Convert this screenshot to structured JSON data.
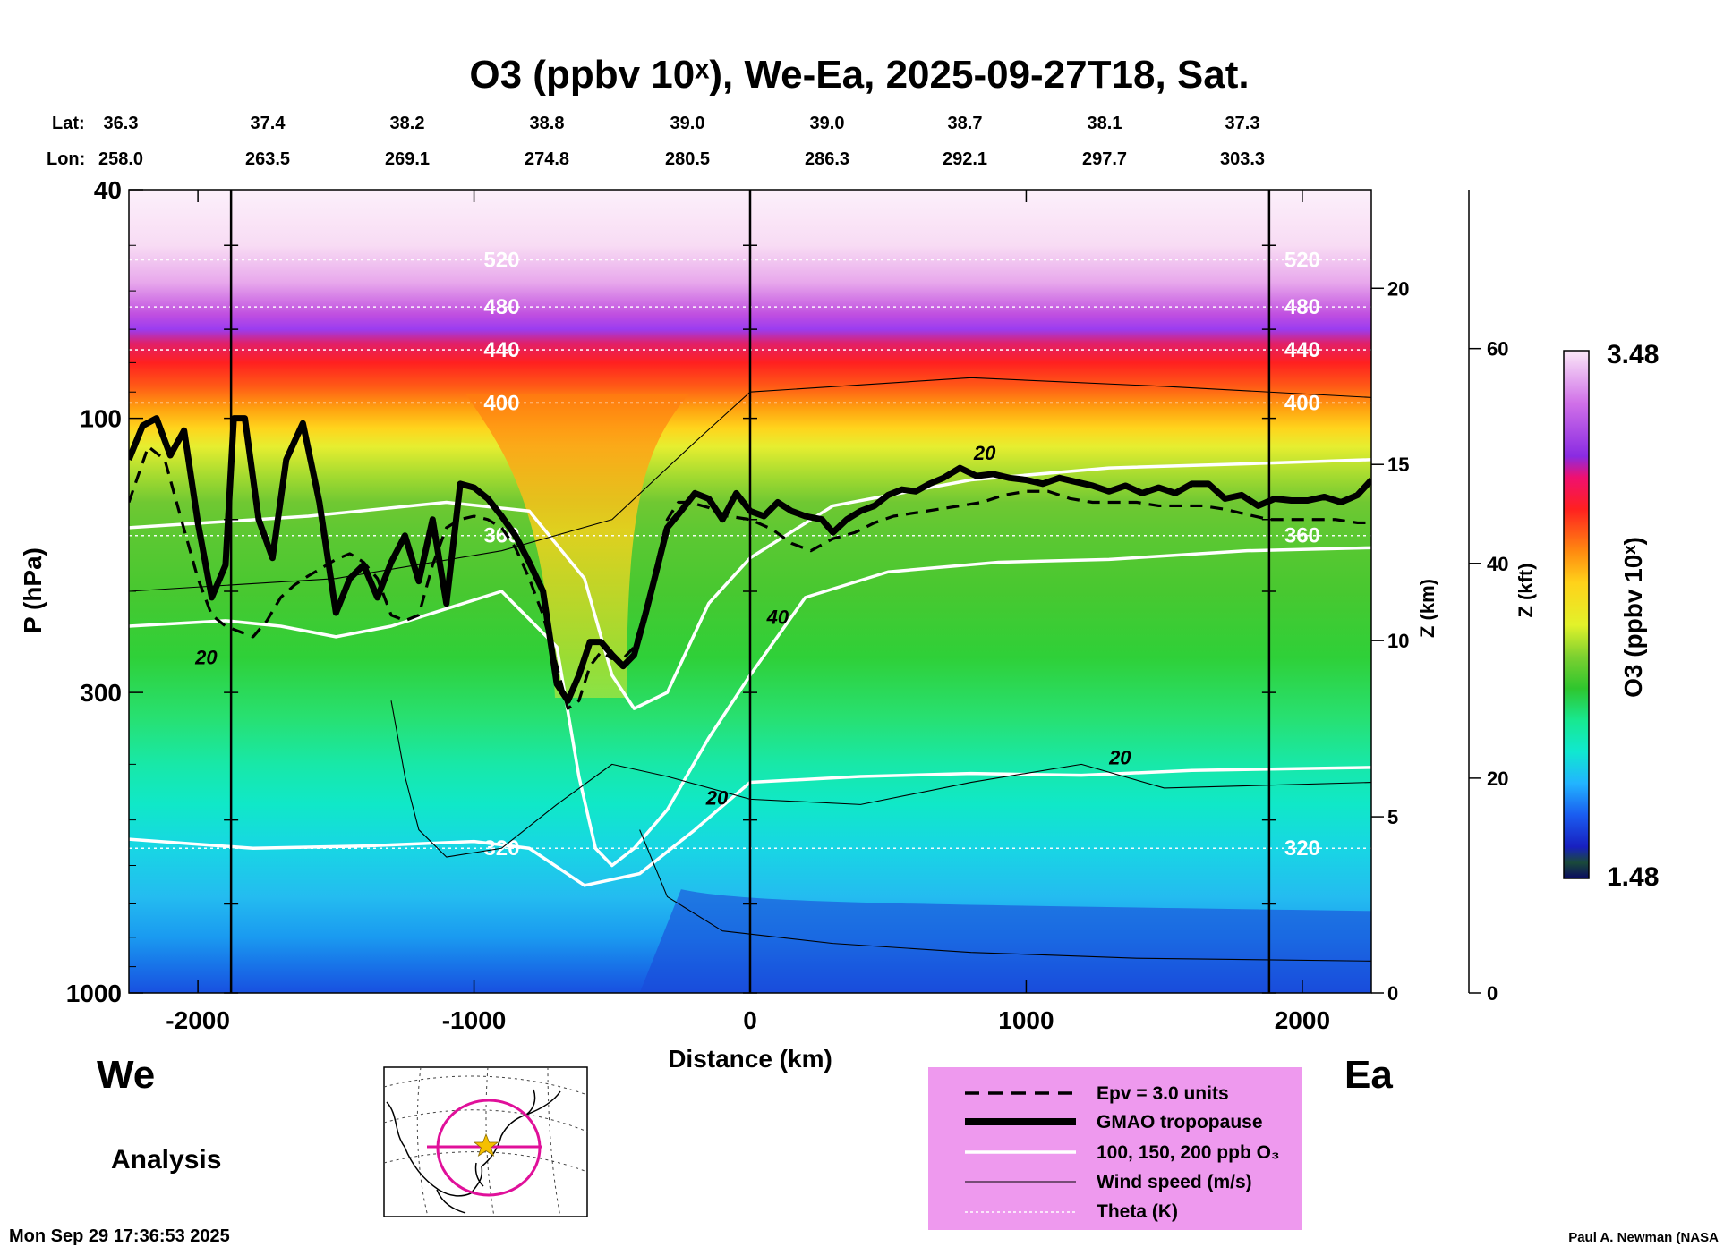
{
  "colors": {
    "background": "#ffffff",
    "ink": "#000000",
    "legend_panel": "#ee99ee",
    "map_circle": "#e0109a",
    "map_star": "#f5c000"
  },
  "labels": {
    "west": "We",
    "east": "Ea",
    "analysis": "Analysis",
    "timestamp": "Mon Sep 29 17:36:53 2025",
    "credit": "Paul A. Newman (NASA"
  },
  "legend": {
    "epv": "Epv = 3.0 units",
    "tropopause": "GMAO tropopause",
    "ozone_contours": "100, 150, 200 ppb O₃",
    "wind": "Wind speed (m/s)",
    "theta": "Theta (K)"
  },
  "chart_data": {
    "type": "heatmap",
    "title": "O3 (ppbv 10ˣ), We-Ea, 2025-09-27T18, Sat.",
    "xlabel": "Distance (km)",
    "ylabel": "P (hPa)",
    "y2label": "Z (km)",
    "y3label": "Z (kft)",
    "colorbar_label": "O3 (ppbv 10ˣ)",
    "xlim": [
      -2250,
      2250
    ],
    "ylim": [
      1000,
      40
    ],
    "yscale": "log",
    "x_ticks": [
      "-2000",
      "-1000",
      "0",
      "1000",
      "2000"
    ],
    "y_ticks": [
      "40",
      "100",
      "300",
      "1000"
    ],
    "z_km_ticks": [
      "0",
      "5",
      "10",
      "15",
      "20"
    ],
    "z_kft_ticks": [
      "0",
      "20",
      "40",
      "60"
    ],
    "colorbar_range": [
      "1.48",
      "3.48"
    ],
    "lat_header": "Lat:",
    "lon_header": "Lon:",
    "latlon": [
      {
        "lat": "36.3",
        "lon": "258.0"
      },
      {
        "lat": "37.4",
        "lon": "263.5"
      },
      {
        "lat": "38.2",
        "lon": "269.1"
      },
      {
        "lat": "38.8",
        "lon": "274.8"
      },
      {
        "lat": "39.0",
        "lon": "280.5"
      },
      {
        "lat": "39.0",
        "lon": "286.3"
      },
      {
        "lat": "38.7",
        "lon": "292.1"
      },
      {
        "lat": "38.1",
        "lon": "297.7"
      },
      {
        "lat": "37.3",
        "lon": "303.3"
      }
    ],
    "section_lines_km": [
      -1880,
      0,
      1880
    ],
    "theta_contours": [
      {
        "label": "520",
        "p": 53
      },
      {
        "label": "480",
        "p": 64
      },
      {
        "label": "440",
        "p": 76
      },
      {
        "label": "400",
        "p": 94
      },
      {
        "label": "360",
        "p": 160
      },
      {
        "label": "320",
        "p": 560
      }
    ],
    "wind_labels": [
      {
        "label": "20",
        "x": 850,
        "p": 118
      },
      {
        "label": "40",
        "x": 100,
        "p": 228
      },
      {
        "label": "20",
        "x": -1970,
        "p": 268
      },
      {
        "label": "20",
        "x": 1340,
        "p": 400
      },
      {
        "label": "20",
        "x": -120,
        "p": 470
      }
    ],
    "tropopause": [
      [
        -2250,
        118
      ],
      [
        -2200,
        103
      ],
      [
        -2150,
        100
      ],
      [
        -2100,
        116
      ],
      [
        -2050,
        105
      ],
      [
        -2000,
        152
      ],
      [
        -1950,
        205
      ],
      [
        -1900,
        180
      ],
      [
        -1870,
        100
      ],
      [
        -1830,
        100
      ],
      [
        -1780,
        150
      ],
      [
        -1730,
        175
      ],
      [
        -1680,
        118
      ],
      [
        -1620,
        102
      ],
      [
        -1560,
        140
      ],
      [
        -1500,
        218
      ],
      [
        -1450,
        190
      ],
      [
        -1400,
        180
      ],
      [
        -1350,
        205
      ],
      [
        -1300,
        178
      ],
      [
        -1250,
        160
      ],
      [
        -1200,
        192
      ],
      [
        -1150,
        150
      ],
      [
        -1100,
        210
      ],
      [
        -1050,
        130
      ],
      [
        -1000,
        132
      ],
      [
        -950,
        138
      ],
      [
        -900,
        148
      ],
      [
        -850,
        160
      ],
      [
        -800,
        178
      ],
      [
        -750,
        200
      ],
      [
        -700,
        290
      ],
      [
        -660,
        310
      ],
      [
        -620,
        280
      ],
      [
        -580,
        245
      ],
      [
        -540,
        245
      ],
      [
        -500,
        258
      ],
      [
        -460,
        270
      ],
      [
        -420,
        258
      ],
      [
        -380,
        220
      ],
      [
        -340,
        185
      ],
      [
        -300,
        155
      ],
      [
        -250,
        145
      ],
      [
        -200,
        135
      ],
      [
        -150,
        138
      ],
      [
        -100,
        150
      ],
      [
        -50,
        135
      ],
      [
        0,
        145
      ],
      [
        50,
        148
      ],
      [
        100,
        140
      ],
      [
        150,
        145
      ],
      [
        200,
        148
      ],
      [
        260,
        150
      ],
      [
        300,
        158
      ],
      [
        350,
        150
      ],
      [
        400,
        145
      ],
      [
        450,
        142
      ],
      [
        500,
        136
      ],
      [
        550,
        133
      ],
      [
        600,
        134
      ],
      [
        650,
        130
      ],
      [
        700,
        127
      ],
      [
        760,
        122
      ],
      [
        820,
        126
      ],
      [
        880,
        125
      ],
      [
        940,
        127
      ],
      [
        1000,
        128
      ],
      [
        1060,
        130
      ],
      [
        1120,
        127
      ],
      [
        1180,
        129
      ],
      [
        1240,
        131
      ],
      [
        1300,
        134
      ],
      [
        1360,
        131
      ],
      [
        1420,
        135
      ],
      [
        1480,
        132
      ],
      [
        1540,
        135
      ],
      [
        1600,
        130
      ],
      [
        1660,
        130
      ],
      [
        1720,
        138
      ],
      [
        1780,
        136
      ],
      [
        1840,
        142
      ],
      [
        1900,
        138
      ],
      [
        1960,
        139
      ],
      [
        2020,
        139
      ],
      [
        2080,
        137
      ],
      [
        2140,
        140
      ],
      [
        2200,
        136
      ],
      [
        2250,
        128
      ]
    ],
    "epv": [
      [
        -2250,
        140
      ],
      [
        -2180,
        112
      ],
      [
        -2120,
        118
      ],
      [
        -2060,
        150
      ],
      [
        -2000,
        190
      ],
      [
        -1950,
        220
      ],
      [
        -1900,
        230
      ],
      [
        -1850,
        235
      ],
      [
        -1800,
        240
      ],
      [
        -1750,
        225
      ],
      [
        -1700,
        205
      ],
      [
        -1650,
        195
      ],
      [
        -1600,
        188
      ],
      [
        -1550,
        182
      ],
      [
        -1500,
        176
      ],
      [
        -1450,
        172
      ],
      [
        -1400,
        178
      ],
      [
        -1350,
        190
      ],
      [
        -1300,
        220
      ],
      [
        -1250,
        225
      ],
      [
        -1200,
        220
      ],
      [
        -1150,
        180
      ],
      [
        -1100,
        155
      ],
      [
        -1050,
        150
      ],
      [
        -1000,
        148
      ],
      [
        -950,
        150
      ],
      [
        -900,
        155
      ],
      [
        -850,
        168
      ],
      [
        -800,
        190
      ],
      [
        -750,
        220
      ],
      [
        -700,
        270
      ],
      [
        -660,
        320
      ],
      [
        -620,
        310
      ],
      [
        -580,
        270
      ],
      [
        -540,
        255
      ],
      [
        -500,
        262
      ],
      [
        -460,
        262
      ],
      [
        -420,
        250
      ],
      [
        -380,
        215
      ],
      [
        -340,
        180
      ],
      [
        -300,
        150
      ],
      [
        -260,
        140
      ],
      [
        -220,
        140
      ],
      [
        -150,
        143
      ],
      [
        -80,
        148
      ],
      [
        0,
        150
      ],
      [
        80,
        156
      ],
      [
        150,
        165
      ],
      [
        220,
        170
      ],
      [
        300,
        162
      ],
      [
        380,
        158
      ],
      [
        450,
        152
      ],
      [
        520,
        148
      ],
      [
        600,
        146
      ],
      [
        680,
        144
      ],
      [
        760,
        142
      ],
      [
        840,
        140
      ],
      [
        920,
        136
      ],
      [
        1000,
        134
      ],
      [
        1080,
        134
      ],
      [
        1160,
        138
      ],
      [
        1240,
        140
      ],
      [
        1320,
        140
      ],
      [
        1400,
        140
      ],
      [
        1480,
        142
      ],
      [
        1560,
        142
      ],
      [
        1640,
        142
      ],
      [
        1720,
        144
      ],
      [
        1800,
        147
      ],
      [
        1880,
        150
      ],
      [
        1960,
        150
      ],
      [
        2040,
        150
      ],
      [
        2120,
        150
      ],
      [
        2200,
        152
      ],
      [
        2250,
        152
      ]
    ]
  }
}
